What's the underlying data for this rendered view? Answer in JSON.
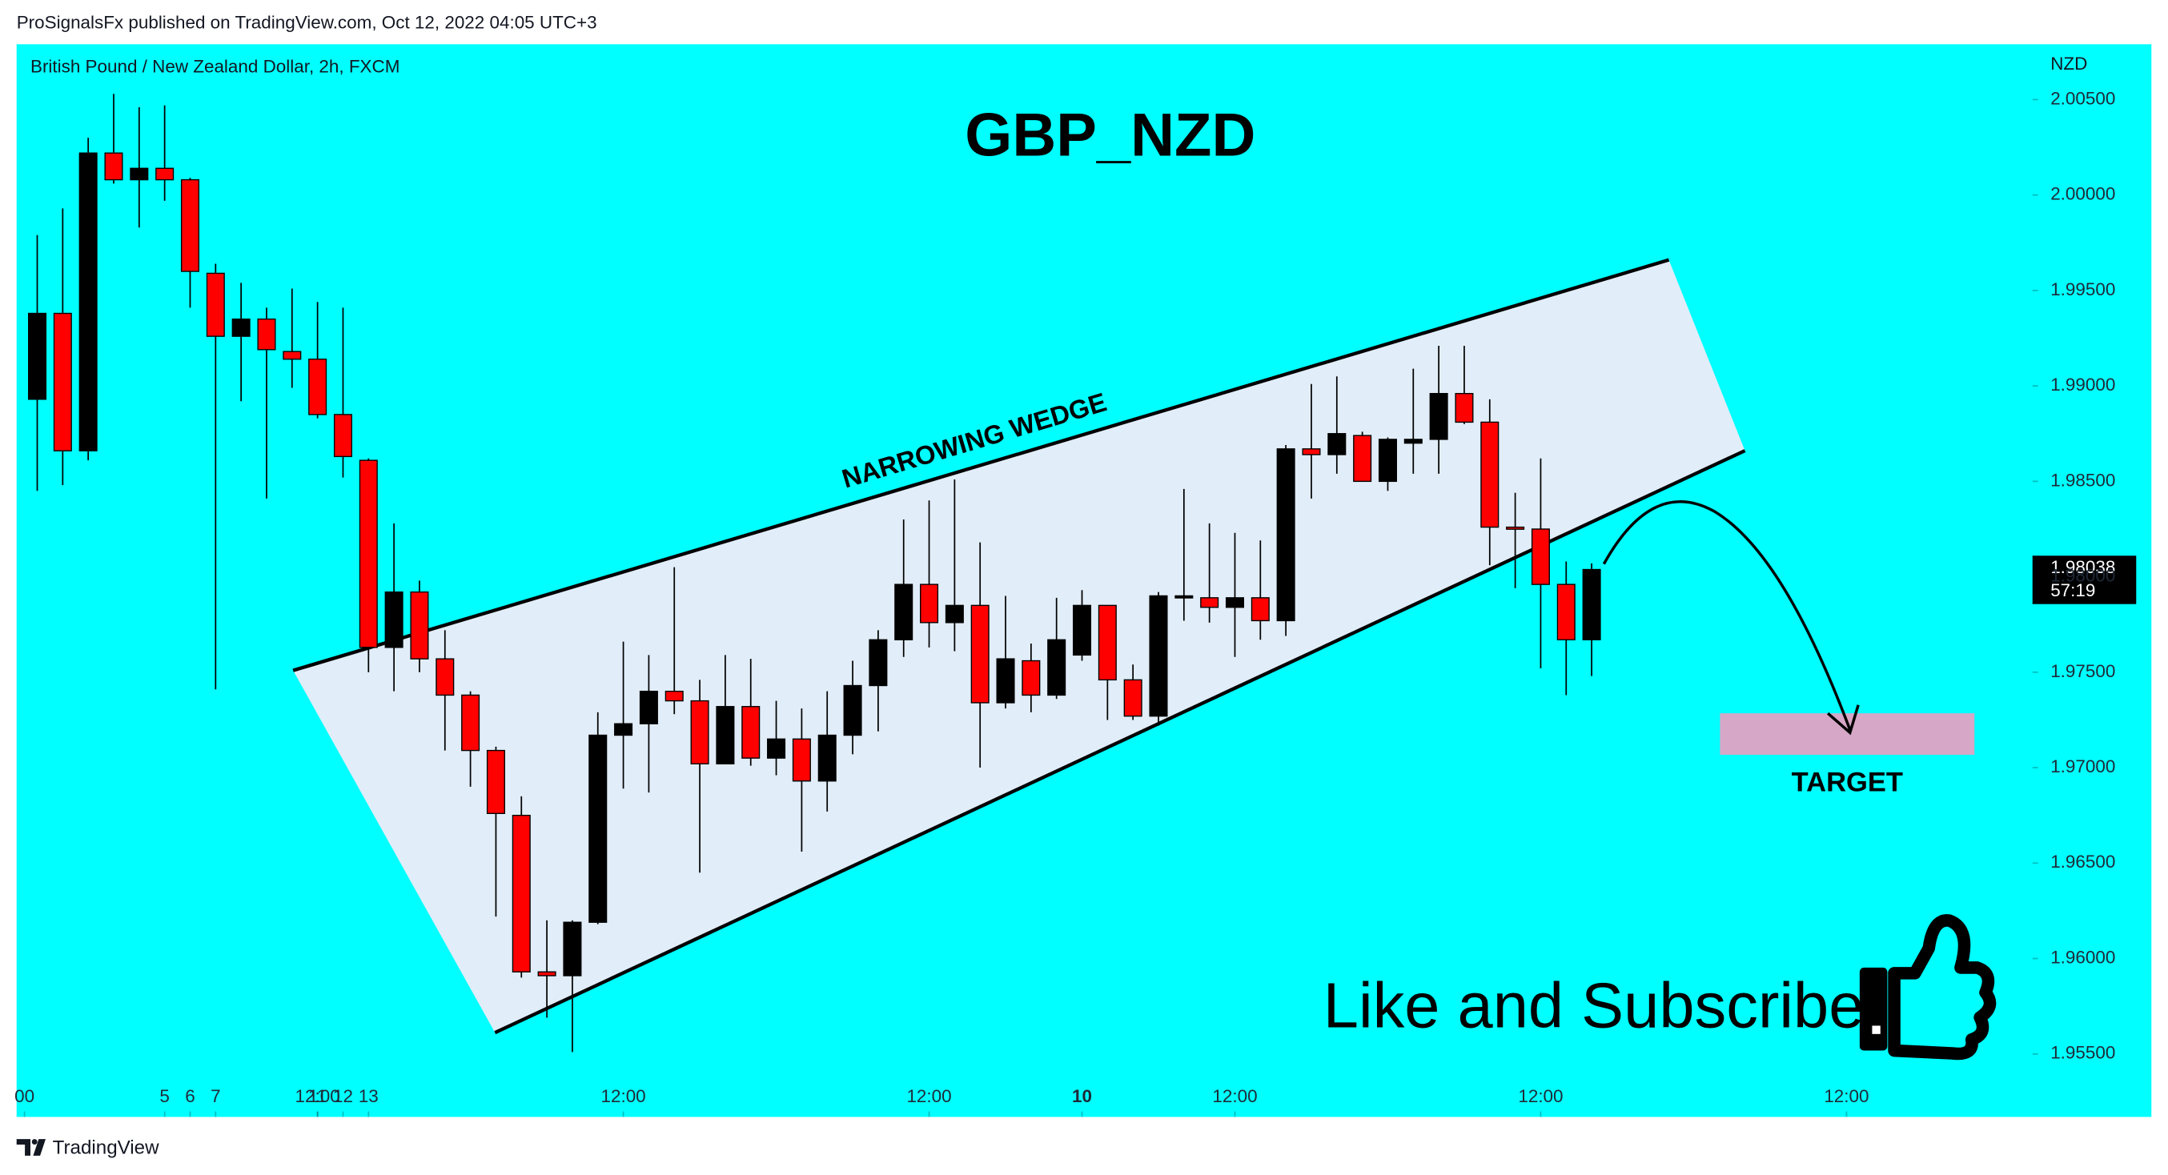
{
  "header": {
    "published": "ProSignalsFx published on TradingView.com, Oct 12, 2022 04:05 UTC+3"
  },
  "chart_data": {
    "type": "candlestick",
    "symbol": "British Pound / New Zealand Dollar, 2h, FXCM",
    "title": "GBP_NZD",
    "currency": "NZD",
    "background": "#00ffff",
    "up_color": "#000000",
    "down_color": "#ff0000",
    "open": [
      1.9893,
      1.9938,
      1.9866,
      2.0022,
      2.0008,
      2.0014,
      2.0008,
      1.9959,
      1.9926,
      1.9935,
      1.9918,
      1.9914,
      1.9885,
      1.9861,
      1.9763,
      1.9792,
      1.9757,
      1.9738,
      1.9709,
      1.9675,
      1.9593,
      1.9591,
      1.9619,
      1.9717,
      1.9723,
      1.974,
      1.9735,
      1.9702,
      1.9732,
      1.9705,
      1.9715,
      1.9693,
      1.9717,
      1.9743,
      1.9767,
      1.9796,
      1.9776,
      1.9785,
      1.9734,
      1.9756,
      1.9738,
      1.9759,
      1.9785,
      1.9746,
      1.9727,
      1.9789,
      1.9789,
      1.9784,
      1.9789,
      1.9777,
      1.9867,
      1.9864,
      1.9874,
      1.985,
      1.987,
      1.9872,
      1.9896,
      1.9881,
      1.9826,
      1.9825,
      1.9796,
      1.9767
    ],
    "high": [
      1.9979,
      1.9993,
      2.003,
      2.0053,
      2.0046,
      2.0047,
      2.0009,
      1.9964,
      1.9954,
      1.9941,
      1.9951,
      1.9944,
      1.9941,
      1.9862,
      1.9828,
      1.9798,
      1.9772,
      1.974,
      1.9711,
      1.9685,
      1.962,
      1.962,
      1.9729,
      1.9766,
      1.9759,
      1.9805,
      1.9746,
      1.9759,
      1.9757,
      1.9735,
      1.9731,
      1.974,
      1.9756,
      1.9772,
      1.983,
      1.984,
      1.9851,
      1.9818,
      1.979,
      1.9765,
      1.9789,
      1.9793,
      1.9785,
      1.9754,
      1.9792,
      1.9846,
      1.9828,
      1.9823,
      1.9819,
      1.9869,
      1.9901,
      1.9905,
      1.9876,
      1.9873,
      1.9909,
      1.9921,
      1.9921,
      1.9893,
      1.9844,
      1.9862,
      1.9808,
      1.9807
    ],
    "low": [
      1.9845,
      1.9848,
      1.9861,
      2.0006,
      1.9983,
      1.9997,
      1.9941,
      1.9741,
      1.9892,
      1.9841,
      1.9899,
      1.9883,
      1.9852,
      1.975,
      1.974,
      1.975,
      1.9709,
      1.969,
      1.9622,
      1.959,
      1.9569,
      1.9551,
      1.9618,
      1.9689,
      1.9687,
      1.9728,
      1.9645,
      1.9702,
      1.9701,
      1.9696,
      1.9656,
      1.9677,
      1.9707,
      1.9719,
      1.9758,
      1.9763,
      1.9761,
      1.97,
      1.9731,
      1.9729,
      1.9736,
      1.9756,
      1.9725,
      1.9725,
      1.9722,
      1.9777,
      1.9776,
      1.9758,
      1.9767,
      1.9769,
      1.9841,
      1.9854,
      1.985,
      1.9845,
      1.9854,
      1.9854,
      1.988,
      1.9806,
      1.9794,
      1.9752,
      1.9738,
      1.9748
    ],
    "close": [
      1.9938,
      1.9866,
      2.0022,
      2.0008,
      2.0014,
      2.0008,
      1.996,
      1.9926,
      1.9935,
      1.9919,
      1.9914,
      1.9885,
      1.9863,
      1.9763,
      1.9792,
      1.9757,
      1.9738,
      1.9709,
      1.9676,
      1.9593,
      1.9591,
      1.9619,
      1.9717,
      1.9723,
      1.974,
      1.9735,
      1.9702,
      1.9732,
      1.9705,
      1.9715,
      1.9693,
      1.9717,
      1.9743,
      1.9767,
      1.9796,
      1.9776,
      1.9785,
      1.9734,
      1.9757,
      1.9738,
      1.9767,
      1.9785,
      1.9746,
      1.9727,
      1.979,
      1.979,
      1.9784,
      1.9789,
      1.9777,
      1.9867,
      1.9864,
      1.9875,
      1.985,
      1.9872,
      1.9872,
      1.9896,
      1.9881,
      1.9826,
      1.9825,
      1.9796,
      1.9767,
      1.98038
    ],
    "xlim": [
      -0.81,
      78.3
    ],
    "xticks": [
      {
        "value": -0.5,
        "label": "00"
      },
      5,
      {
        "value": 11,
        "label": "12:00"
      },
      6,
      {
        "value": 23,
        "label": "12:00"
      },
      7,
      {
        "value": 35,
        "label": "12:00"
      },
      {
        "value": 41,
        "label": "10",
        "bold": true
      },
      {
        "value": 47,
        "label": "12:00"
      },
      11,
      {
        "value": 59,
        "label": "12:00"
      },
      12,
      {
        "value": 71,
        "label": "12:00"
      },
      13
    ],
    "ylim": [
      1.9517,
      2.0079
    ],
    "yticks": [
      {
        "value": 2.005,
        "label": "2.00500"
      },
      {
        "value": 2.0,
        "label": "2.00000"
      },
      {
        "value": 1.995,
        "label": "1.99500"
      },
      {
        "value": 1.99,
        "label": "1.99000"
      },
      {
        "value": 1.985,
        "label": "1.98500"
      },
      {
        "value": 1.98,
        "label": "1.98000"
      },
      {
        "value": 1.975,
        "label": "1.97500"
      },
      {
        "value": 1.97,
        "label": "1.97000"
      },
      {
        "value": 1.965,
        "label": "1.96500"
      },
      {
        "value": 1.96,
        "label": "1.96000"
      },
      {
        "value": 1.955,
        "label": "1.95500"
      }
    ],
    "last_price": 1.98038,
    "countdown": "57:19",
    "annotations": {
      "wedge": "NARROWING WEDGE",
      "target": "TARGET",
      "cta": "Like and Subscribe"
    }
  },
  "footer": {
    "brand": "TradingView"
  }
}
